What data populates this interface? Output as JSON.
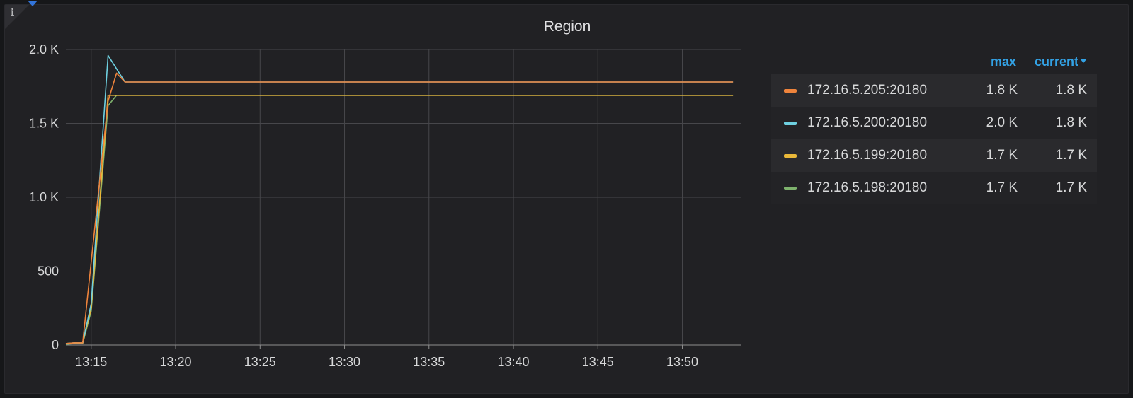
{
  "panel": {
    "title": "Region",
    "info_icon": "info-icon"
  },
  "legend": {
    "headers": {
      "max": "max",
      "current": "current"
    },
    "rows": [
      {
        "name": "172.16.5.205:20180",
        "color": "#ef843c",
        "max": "1.8 K",
        "current": "1.8 K"
      },
      {
        "name": "172.16.5.200:20180",
        "color": "#6ed0e0",
        "max": "2.0 K",
        "current": "1.8 K"
      },
      {
        "name": "172.16.5.199:20180",
        "color": "#eab839",
        "max": "1.7 K",
        "current": "1.7 K"
      },
      {
        "name": "172.16.5.198:20180",
        "color": "#7eb26d",
        "max": "1.7 K",
        "current": "1.7 K"
      }
    ]
  },
  "chart_data": {
    "type": "line",
    "title": "Region",
    "xlabel": "",
    "ylabel": "",
    "xlim": [
      "13:13.5",
      "13:53.5"
    ],
    "ylim": [
      0,
      2000
    ],
    "grid": true,
    "legend_position": "right",
    "y_ticks": [
      {
        "value": 0,
        "label": "0"
      },
      {
        "value": 500,
        "label": "500"
      },
      {
        "value": 1000,
        "label": "1.0 K"
      },
      {
        "value": 1500,
        "label": "1.5 K"
      },
      {
        "value": 2000,
        "label": "2.0 K"
      }
    ],
    "x_ticks": [
      {
        "value": "13:15",
        "label": "13:15"
      },
      {
        "value": "13:20",
        "label": "13:20"
      },
      {
        "value": "13:25",
        "label": "13:25"
      },
      {
        "value": "13:30",
        "label": "13:30"
      },
      {
        "value": "13:35",
        "label": "13:35"
      },
      {
        "value": "13:40",
        "label": "13:40"
      },
      {
        "value": "13:45",
        "label": "13:45"
      },
      {
        "value": "13:50",
        "label": "13:50"
      }
    ],
    "series": [
      {
        "name": "172.16.5.198:20180",
        "color": "#7eb26d",
        "points": [
          [
            "13:13.5",
            5
          ],
          [
            "13:14",
            10
          ],
          [
            "13:14.5",
            10
          ],
          [
            "13:15",
            230
          ],
          [
            "13:16",
            1620
          ],
          [
            "13:16.5",
            1690
          ],
          [
            "13:53",
            1690
          ]
        ]
      },
      {
        "name": "172.16.5.199:20180",
        "color": "#eab839",
        "points": [
          [
            "13:13.5",
            10
          ],
          [
            "13:14",
            15
          ],
          [
            "13:14.5",
            15
          ],
          [
            "13:15",
            250
          ],
          [
            "13:16",
            1690
          ],
          [
            "13:16.5",
            1690
          ],
          [
            "13:53",
            1690
          ]
        ]
      },
      {
        "name": "172.16.5.200:20180",
        "color": "#6ed0e0",
        "points": [
          [
            "13:13.5",
            10
          ],
          [
            "13:14",
            15
          ],
          [
            "13:14.5",
            15
          ],
          [
            "13:15",
            280
          ],
          [
            "13:16",
            1960
          ],
          [
            "13:17",
            1780
          ],
          [
            "13:53",
            1780
          ]
        ]
      },
      {
        "name": "172.16.5.205:20180",
        "color": "#ef843c",
        "points": [
          [
            "13:13.5",
            10
          ],
          [
            "13:14",
            15
          ],
          [
            "13:14.5",
            15
          ],
          [
            "13:16",
            1650
          ],
          [
            "13:16.5",
            1840
          ],
          [
            "13:17",
            1780
          ],
          [
            "13:53",
            1780
          ]
        ]
      }
    ]
  }
}
